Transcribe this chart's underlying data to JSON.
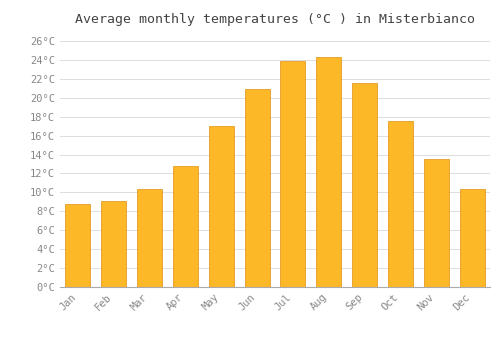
{
  "title": "Average monthly temperatures (°C ) in Misterbianco",
  "months": [
    "Jan",
    "Feb",
    "Mar",
    "Apr",
    "May",
    "Jun",
    "Jul",
    "Aug",
    "Sep",
    "Oct",
    "Nov",
    "Dec"
  ],
  "temperatures": [
    8.8,
    9.1,
    10.4,
    12.8,
    17.0,
    20.9,
    23.9,
    24.3,
    21.6,
    17.5,
    13.5,
    10.4
  ],
  "bar_color": "#FDB827",
  "bar_edge_color": "#E09010",
  "background_color": "#FFFFFF",
  "grid_color": "#DDDDDD",
  "ylim": [
    0,
    27
  ],
  "title_fontsize": 9.5,
  "tick_fontsize": 7.5,
  "font_family": "monospace",
  "title_color": "#444444",
  "tick_color": "#888888"
}
